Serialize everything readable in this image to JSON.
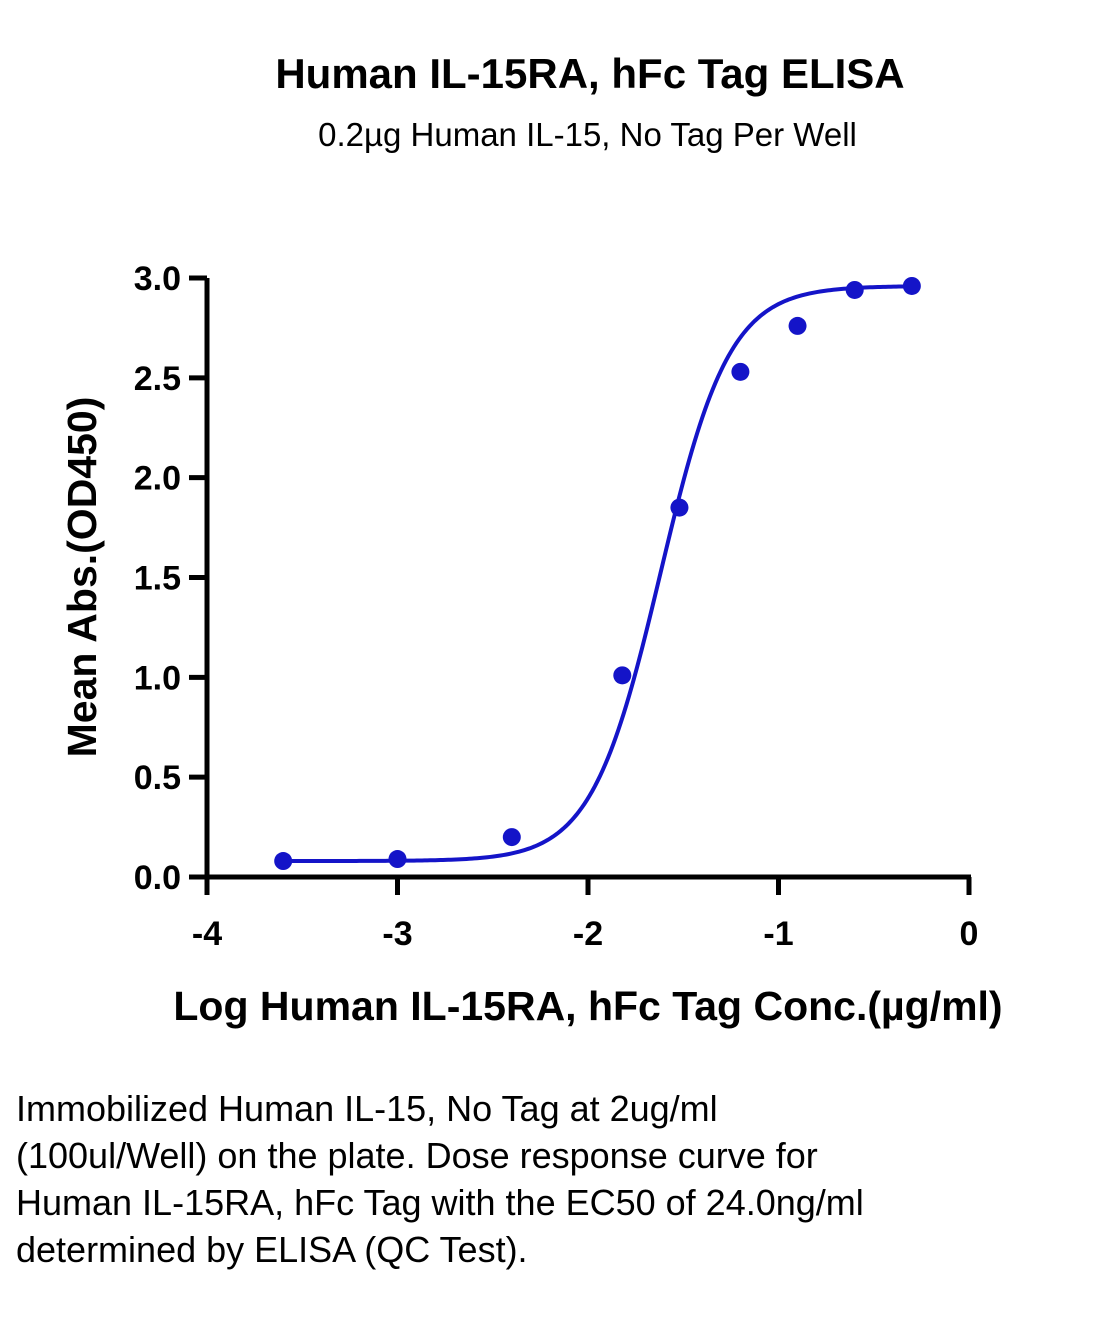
{
  "chart_data": {
    "type": "scatter",
    "title": "Human IL-15RA, hFc Tag ELISA",
    "subtitle": "0.2µg Human IL-15, No Tag Per Well",
    "xlabel": "Log Human IL-15RA, hFc Tag Conc.(µg/ml)",
    "ylabel": "Mean Abs.(OD450)",
    "xlim": [
      -4,
      0
    ],
    "ylim": [
      0,
      3
    ],
    "x_ticks": [
      "-4",
      "-3",
      "-2",
      "-1",
      "0"
    ],
    "x_tick_values": [
      -4,
      -3,
      -2,
      -1,
      0
    ],
    "y_ticks": [
      "0.0",
      "0.5",
      "1.0",
      "1.5",
      "2.0",
      "2.5",
      "3.0"
    ],
    "y_tick_values": [
      0,
      0.5,
      1.0,
      1.5,
      2.0,
      2.5,
      3.0
    ],
    "grid": false,
    "series": [
      {
        "points": [
          {
            "x": -3.6,
            "y": 0.08
          },
          {
            "x": -3.0,
            "y": 0.09
          },
          {
            "x": -2.4,
            "y": 0.2
          },
          {
            "x": -1.82,
            "y": 1.01
          },
          {
            "x": -1.52,
            "y": 1.85
          },
          {
            "x": -1.2,
            "y": 2.53
          },
          {
            "x": -0.9,
            "y": 2.76
          },
          {
            "x": -0.6,
            "y": 2.94
          },
          {
            "x": -0.3,
            "y": 2.96
          }
        ],
        "fit": {
          "model": "4PL",
          "bottom": 0.08,
          "top": 2.96,
          "logEC50": -1.62,
          "hill": 2.4
        },
        "color": "#1414c8"
      }
    ]
  },
  "caption": "Immobilized Human IL-15, No Tag at 2ug/ml (100ul/Well) on the plate. Dose response curve for Human IL-15RA, hFc Tag with the EC50 of 24.0ng/ml determined by ELISA (QC Test)."
}
